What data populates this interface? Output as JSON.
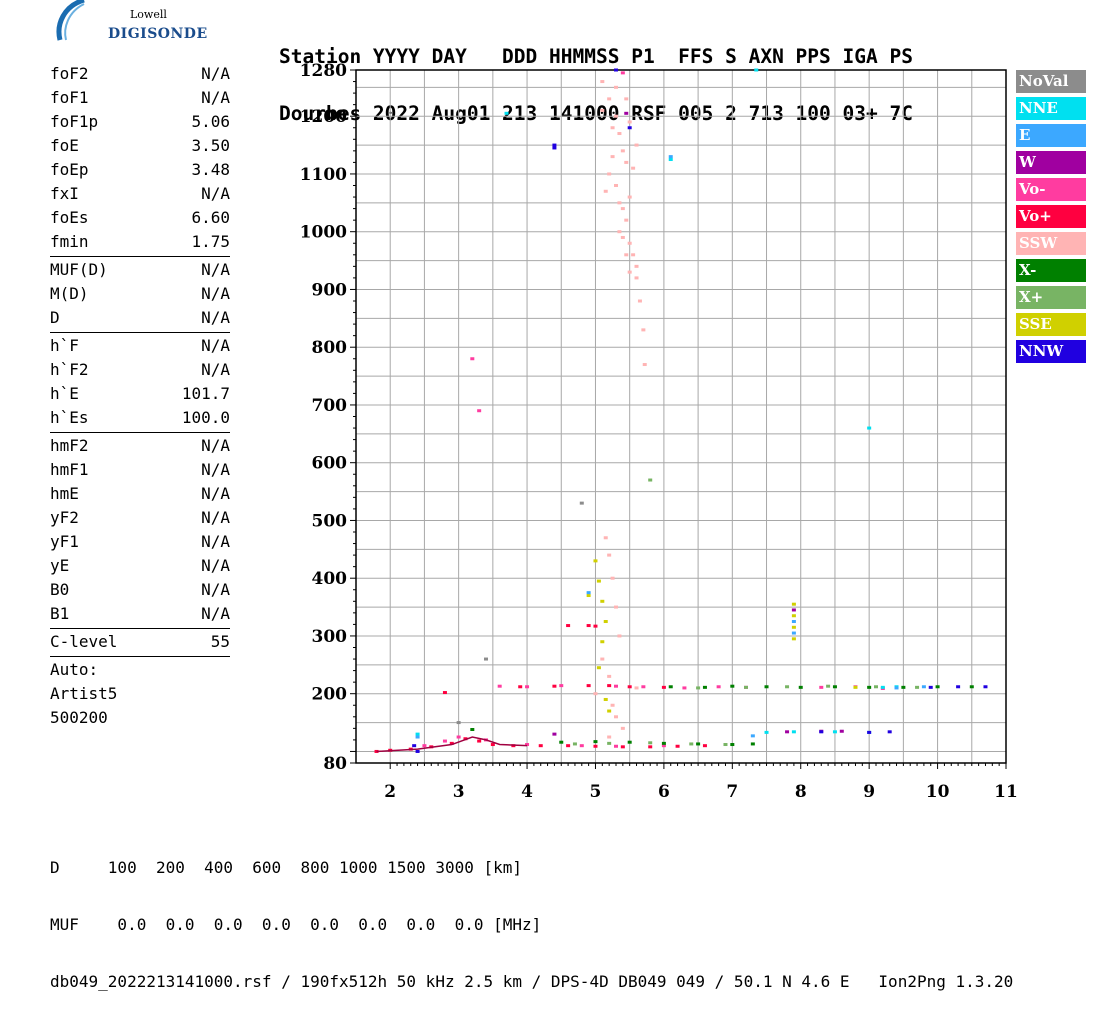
{
  "logo": {
    "top": "Lowell",
    "bottom": "DIGISONDE"
  },
  "header": {
    "line1": "Station YYYY DAY   DDD HHMMSS P1  FFS S AXN PPS IGA PS",
    "line2": "Dourbes 2022 Aug01 213 141000 RSF 005 2 713 100 03+ 7C"
  },
  "params": {
    "group1": [
      {
        "name": "foF2",
        "value": "N/A"
      },
      {
        "name": "foF1",
        "value": "N/A"
      },
      {
        "name": "foF1p",
        "value": "5.06"
      },
      {
        "name": "foE",
        "value": "3.50"
      },
      {
        "name": "foEp",
        "value": "3.48"
      },
      {
        "name": "fxI",
        "value": "N/A"
      },
      {
        "name": "foEs",
        "value": "6.60"
      },
      {
        "name": "fmin",
        "value": "1.75"
      }
    ],
    "group2": [
      {
        "name": "MUF(D)",
        "value": "N/A"
      },
      {
        "name": "M(D)",
        "value": "N/A"
      },
      {
        "name": "D",
        "value": "N/A"
      }
    ],
    "group3": [
      {
        "name": "h`F",
        "value": "N/A"
      },
      {
        "name": "h`F2",
        "value": "N/A"
      },
      {
        "name": "h`E",
        "value": "101.7"
      },
      {
        "name": "h`Es",
        "value": "100.0"
      }
    ],
    "group4": [
      {
        "name": "hmF2",
        "value": "N/A"
      },
      {
        "name": "hmF1",
        "value": "N/A"
      },
      {
        "name": "hmE",
        "value": "N/A"
      },
      {
        "name": "yF2",
        "value": "N/A"
      },
      {
        "name": "yF1",
        "value": "N/A"
      },
      {
        "name": "yE",
        "value": "N/A"
      },
      {
        "name": "B0",
        "value": "N/A"
      },
      {
        "name": "B1",
        "value": "N/A"
      }
    ],
    "clevel": {
      "name": "C-level",
      "value": "55"
    },
    "auto": [
      "Auto:",
      "Artist5",
      "500200"
    ]
  },
  "legend": [
    {
      "label": "NoVal",
      "color": "#8c8c8c"
    },
    {
      "label": "NNE",
      "color": "#00e0f0"
    },
    {
      "label": "E",
      "color": "#3ca8ff"
    },
    {
      "label": "W",
      "color": "#a000a0"
    },
    {
      "label": "Vo-",
      "color": "#ff3ca0"
    },
    {
      "label": "Vo+",
      "color": "#ff0040"
    },
    {
      "label": "SSW",
      "color": "#ffb4b4"
    },
    {
      "label": "X-",
      "color": "#008000"
    },
    {
      "label": "X+",
      "color": "#78b464"
    },
    {
      "label": "SSE",
      "color": "#d0d000"
    },
    {
      "label": "NNW",
      "color": "#2000e0"
    }
  ],
  "footer": {
    "line1": "D     100  200  400  600  800 1000 1500 3000 [km]",
    "line2": "MUF    0.0  0.0  0.0  0.0  0.0  0.0  0.0  0.0 [MHz]",
    "line3": "db049_2022213141000.rsf / 190fx512h 50 kHz 2.5 km / DPS-4D DB049 049 / 50.1 N 4.6 E   Ion2Png 1.3.20"
  },
  "chart_data": {
    "type": "scatter",
    "title": "",
    "xlabel": "",
    "ylabel": "",
    "xlim": [
      1.5,
      11
    ],
    "ylim": [
      80,
      1280
    ],
    "xticks": [
      2,
      3,
      4,
      5,
      6,
      7,
      8,
      9,
      10,
      11
    ],
    "yticks": [
      80,
      200,
      300,
      400,
      500,
      600,
      700,
      800,
      900,
      1000,
      1100,
      1200,
      1280
    ],
    "grid": true,
    "legend_position": "right",
    "series": [
      {
        "name": "Vo+",
        "points": [
          [
            1.8,
            100
          ],
          [
            2.0,
            102
          ],
          [
            2.3,
            104
          ],
          [
            2.6,
            108
          ],
          [
            2.9,
            114
          ],
          [
            3.1,
            122
          ],
          [
            3.3,
            118
          ],
          [
            3.5,
            112
          ],
          [
            3.8,
            110
          ],
          [
            4.2,
            110
          ],
          [
            4.6,
            110
          ],
          [
            5.0,
            109
          ],
          [
            5.4,
            108
          ],
          [
            5.8,
            108
          ],
          [
            6.2,
            109
          ],
          [
            6.6,
            110
          ],
          [
            3.9,
            212
          ],
          [
            4.4,
            213
          ],
          [
            4.9,
            214
          ],
          [
            5.2,
            214
          ],
          [
            5.5,
            212
          ],
          [
            6.0,
            211
          ],
          [
            2.8,
            202
          ],
          [
            4.6,
            318
          ],
          [
            4.9,
            318
          ],
          [
            5.0,
            317
          ]
        ]
      },
      {
        "name": "Vo-",
        "points": [
          [
            2.5,
            110
          ],
          [
            2.8,
            118
          ],
          [
            3.0,
            125
          ],
          [
            3.4,
            120
          ],
          [
            4.0,
            112
          ],
          [
            4.8,
            110
          ],
          [
            5.3,
            109
          ],
          [
            6.0,
            110
          ],
          [
            3.6,
            213
          ],
          [
            4.0,
            212
          ],
          [
            4.5,
            214
          ],
          [
            5.3,
            213
          ],
          [
            5.7,
            212
          ],
          [
            6.3,
            210
          ],
          [
            6.8,
            212
          ],
          [
            7.2,
            211
          ],
          [
            8.3,
            211
          ],
          [
            8.8,
            212
          ],
          [
            9.2,
            209
          ],
          [
            3.2,
            780
          ],
          [
            3.3,
            690
          ],
          [
            5.4,
            1275
          ]
        ]
      },
      {
        "name": "X-",
        "points": [
          [
            3.2,
            138
          ],
          [
            4.5,
            116
          ],
          [
            5.0,
            117
          ],
          [
            5.5,
            116
          ],
          [
            6.0,
            114
          ],
          [
            6.5,
            113
          ],
          [
            7.0,
            112
          ],
          [
            7.3,
            113
          ],
          [
            6.1,
            212
          ],
          [
            6.6,
            211
          ],
          [
            7.0,
            213
          ],
          [
            7.5,
            212
          ],
          [
            8.0,
            211
          ],
          [
            8.5,
            212
          ],
          [
            9.0,
            211
          ],
          [
            9.5,
            211
          ],
          [
            10.0,
            212
          ],
          [
            10.5,
            212
          ]
        ]
      },
      {
        "name": "X+",
        "points": [
          [
            4.7,
            113
          ],
          [
            5.2,
            114
          ],
          [
            5.8,
            115
          ],
          [
            6.4,
            113
          ],
          [
            6.9,
            112
          ],
          [
            6.5,
            210
          ],
          [
            7.2,
            211
          ],
          [
            7.8,
            212
          ],
          [
            8.4,
            213
          ],
          [
            9.1,
            212
          ],
          [
            9.7,
            211
          ],
          [
            5.8,
            570
          ]
        ]
      },
      {
        "name": "SSW",
        "points": [
          [
            5.1,
            1260
          ],
          [
            5.2,
            1230
          ],
          [
            5.3,
            1200
          ],
          [
            5.35,
            1170
          ],
          [
            5.4,
            1140
          ],
          [
            5.45,
            1120
          ],
          [
            5.2,
            1100
          ],
          [
            5.3,
            1080
          ],
          [
            5.5,
            1060
          ],
          [
            5.4,
            1040
          ],
          [
            5.45,
            1020
          ],
          [
            5.35,
            1000
          ],
          [
            5.5,
            980
          ],
          [
            5.55,
            960
          ],
          [
            5.6,
            940
          ],
          [
            5.3,
            1250
          ],
          [
            5.45,
            1230
          ],
          [
            5.5,
            1190
          ],
          [
            5.6,
            1150
          ],
          [
            5.25,
            1130
          ],
          [
            5.55,
            1110
          ],
          [
            5.15,
            1070
          ],
          [
            5.4,
            990
          ],
          [
            5.6,
            920
          ],
          [
            5.65,
            880
          ],
          [
            5.7,
            830
          ],
          [
            5.72,
            770
          ],
          [
            5.15,
            470
          ],
          [
            5.2,
            440
          ],
          [
            5.25,
            400
          ],
          [
            5.3,
            350
          ],
          [
            5.35,
            300
          ],
          [
            5.1,
            260
          ],
          [
            5.2,
            230
          ],
          [
            5.25,
            180
          ],
          [
            5.3,
            160
          ],
          [
            5.4,
            140
          ],
          [
            5.2,
            125
          ],
          [
            5.0,
            200
          ],
          [
            5.6,
            210
          ],
          [
            5.1,
            1210
          ],
          [
            5.25,
            1180
          ],
          [
            5.35,
            1050
          ],
          [
            5.45,
            960
          ],
          [
            5.5,
            930
          ]
        ]
      },
      {
        "name": "SSE",
        "points": [
          [
            5.0,
            430
          ],
          [
            5.05,
            395
          ],
          [
            5.1,
            360
          ],
          [
            5.15,
            325
          ],
          [
            5.1,
            290
          ],
          [
            5.05,
            245
          ],
          [
            5.15,
            190
          ],
          [
            5.2,
            170
          ],
          [
            7.9,
            295
          ],
          [
            7.9,
            315
          ],
          [
            7.9,
            335
          ],
          [
            7.9,
            355
          ],
          [
            4.9,
            370
          ],
          [
            8.8,
            211
          ]
        ]
      },
      {
        "name": "NNE",
        "points": [
          [
            7.5,
            133
          ],
          [
            7.9,
            134
          ],
          [
            8.5,
            134
          ],
          [
            9.0,
            133
          ],
          [
            6.1,
            1125
          ],
          [
            3.7,
            1205
          ],
          [
            9.2,
            211
          ],
          [
            9.4,
            212
          ],
          [
            2.4,
            130
          ],
          [
            7.35,
            1280
          ],
          [
            9.0,
            660
          ]
        ]
      },
      {
        "name": "E",
        "points": [
          [
            2.4,
            125
          ],
          [
            7.3,
            127
          ],
          [
            6.1,
            1130
          ],
          [
            4.9,
            375
          ],
          [
            9.4,
            210
          ],
          [
            9.8,
            212
          ],
          [
            7.9,
            305
          ],
          [
            7.9,
            325
          ]
        ]
      },
      {
        "name": "W",
        "points": [
          [
            4.4,
            130
          ],
          [
            7.8,
            134
          ],
          [
            8.3,
            135
          ],
          [
            8.6,
            135
          ],
          [
            7.9,
            345
          ],
          [
            5.45,
            1205
          ]
        ]
      },
      {
        "name": "NNW",
        "points": [
          [
            2.4,
            100
          ],
          [
            2.35,
            110
          ],
          [
            4.4,
            1150
          ],
          [
            4.4,
            1145
          ],
          [
            8.3,
            134
          ],
          [
            9.0,
            133
          ],
          [
            9.3,
            134
          ],
          [
            9.9,
            211
          ],
          [
            10.3,
            212
          ],
          [
            10.7,
            212
          ],
          [
            5.3,
            1280
          ],
          [
            5.5,
            1180
          ]
        ]
      },
      {
        "name": "NoVal",
        "points": [
          [
            4.8,
            530
          ],
          [
            3.0,
            150
          ],
          [
            3.4,
            260
          ]
        ]
      }
    ]
  }
}
